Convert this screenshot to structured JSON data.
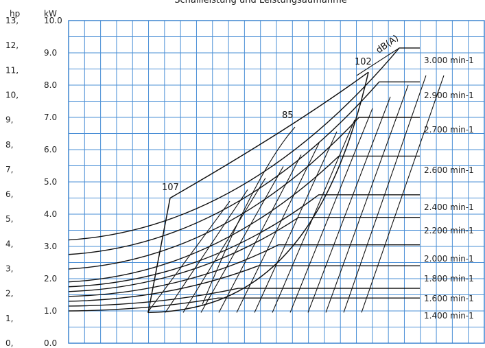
{
  "chart_data": {
    "type": "line",
    "title": "Schallleistung und Leistungsaufnahme",
    "y_left_label": "hp",
    "y_right_label": "kW",
    "extra_label": "dB(A)",
    "ylim": [
      0,
      10
    ],
    "yticks_kw": [
      "0.0",
      "1.0",
      "2.0",
      "3.0",
      "4.0",
      "5.0",
      "6.0",
      "7.0",
      "8.0",
      "9.0",
      "10.0"
    ],
    "yticks_hp": [
      "0,",
      "1,",
      "2,",
      "3,",
      "4,",
      "5,",
      "6,",
      "7,",
      "8,",
      "9,",
      "10,",
      "11,",
      "12,",
      "13,"
    ],
    "noise_labels": [
      "107",
      "85",
      "102"
    ],
    "series": [
      {
        "name": "3.000 min-1",
        "peak_kw": 9.15,
        "start_kw": 3.2
      },
      {
        "name": "2.900 min-1",
        "peak_kw": 8.1,
        "start_kw": 2.75
      },
      {
        "name": "2.700 min-1",
        "peak_kw": 7.0,
        "start_kw": 2.3
      },
      {
        "name": "2.600 min-1",
        "peak_kw": 5.8,
        "start_kw": 1.9
      },
      {
        "name": "2.400 min-1",
        "peak_kw": 4.6,
        "start_kw": 1.75
      },
      {
        "name": "2.200 min-1",
        "peak_kw": 3.9,
        "start_kw": 1.6
      },
      {
        "name": "2.000 min-1",
        "peak_kw": 3.05,
        "start_kw": 1.45
      },
      {
        "name": "1.800 min-1",
        "peak_kw": 2.4,
        "start_kw": 1.3
      },
      {
        "name": "1.600 min-1",
        "peak_kw": 1.7,
        "start_kw": 1.15
      },
      {
        "name": "1.400 min-1",
        "peak_kw": 1.4,
        "start_kw": 1.0
      }
    ]
  }
}
